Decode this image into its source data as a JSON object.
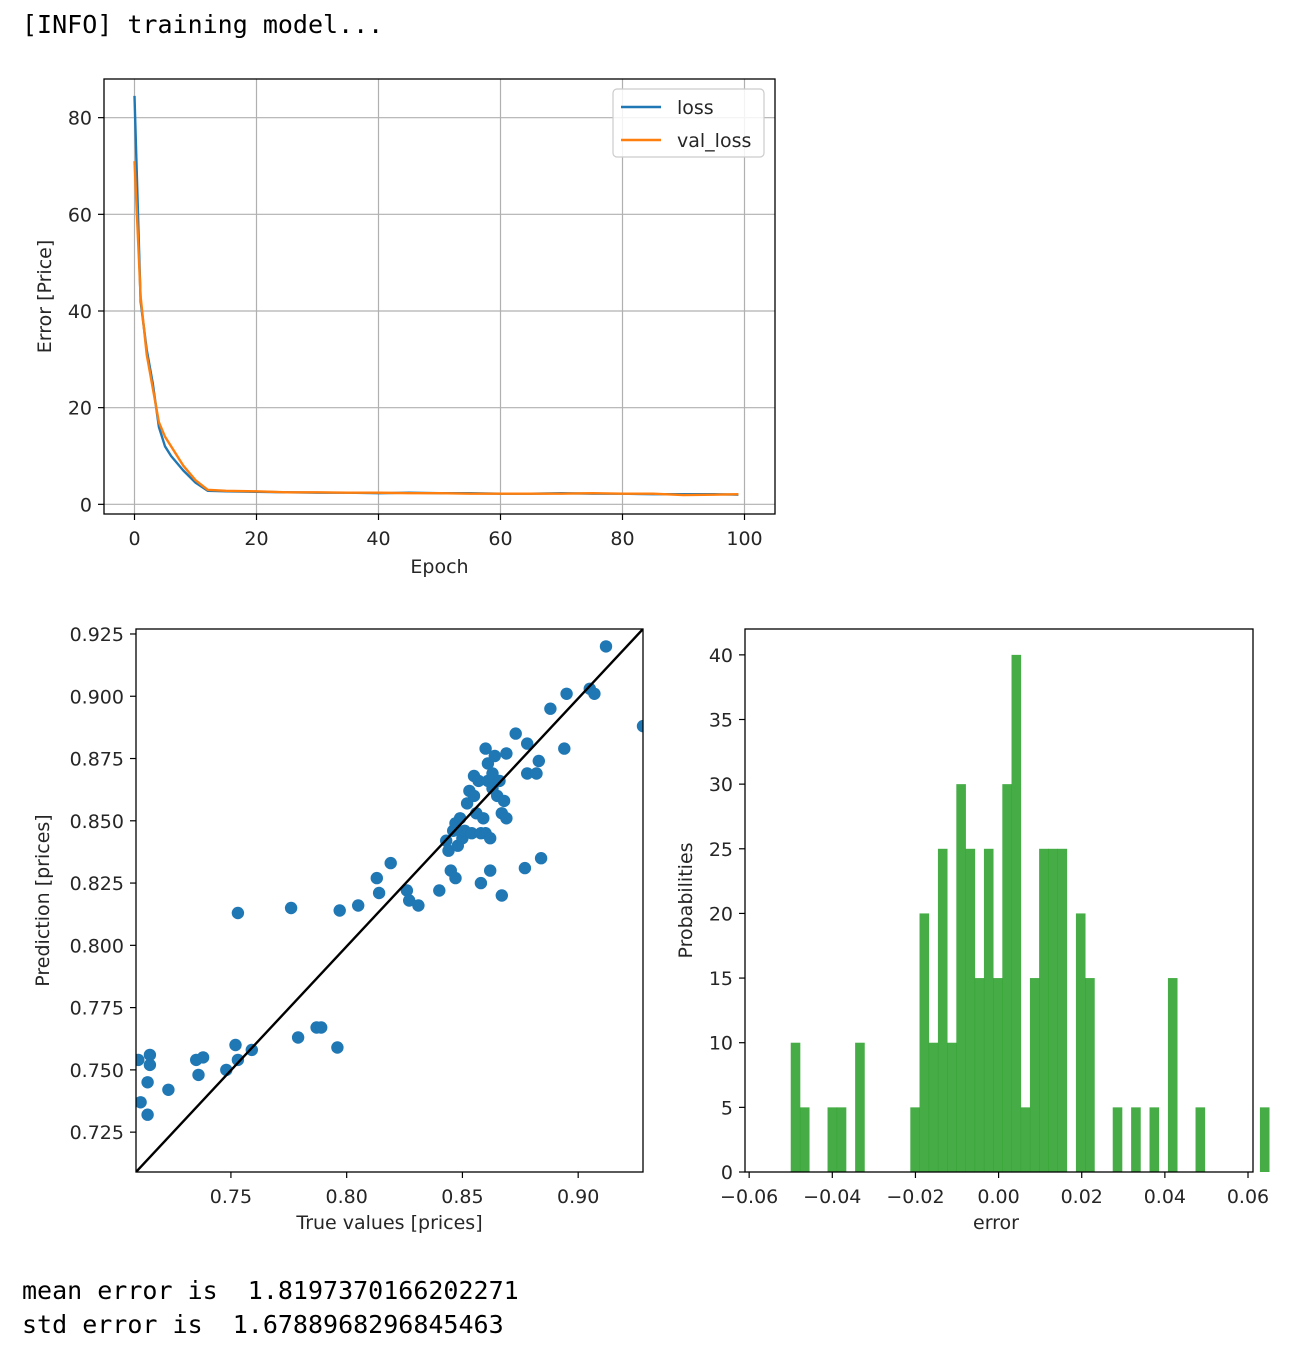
{
  "output": {
    "info": "[INFO] training model...",
    "mean_line": "mean error is  1.8197370166202271",
    "std_line": "std error is  1.6788968296845463"
  },
  "colors": {
    "loss": "#1f77b4",
    "val_loss": "#ff7f0e",
    "scatter": "#1f77b4",
    "hist": "#2ca02c",
    "diagonal": "#000000"
  },
  "chart_data": [
    {
      "type": "line",
      "xlabel": "Epoch",
      "ylabel": "Error [Price]",
      "xlim": [
        -5,
        105
      ],
      "ylim": [
        -2,
        88
      ],
      "xticks": [
        0,
        20,
        40,
        60,
        80,
        100
      ],
      "yticks": [
        0,
        20,
        40,
        60,
        80
      ],
      "grid": true,
      "legend_position": "top-right",
      "series": [
        {
          "name": "loss",
          "x": [
            0,
            1,
            2,
            3,
            4,
            5,
            6,
            8,
            10,
            12,
            15,
            20,
            25,
            30,
            35,
            40,
            45,
            50,
            55,
            60,
            65,
            70,
            75,
            80,
            85,
            90,
            95,
            99
          ],
          "y": [
            84.5,
            42,
            32,
            25,
            16,
            12,
            10,
            7,
            4.5,
            2.8,
            2.7,
            2.6,
            2.5,
            2.4,
            2.4,
            2.3,
            2.4,
            2.3,
            2.3,
            2.2,
            2.2,
            2.3,
            2.2,
            2.2,
            2.1,
            2.1,
            2.1,
            2.0
          ]
        },
        {
          "name": "val_loss",
          "x": [
            0,
            1,
            2,
            3,
            4,
            5,
            6,
            8,
            10,
            12,
            15,
            20,
            25,
            30,
            35,
            40,
            45,
            50,
            55,
            60,
            65,
            70,
            75,
            80,
            85,
            90,
            95,
            99
          ],
          "y": [
            71,
            43,
            31,
            24,
            17,
            14,
            12,
            8,
            5,
            3.0,
            2.8,
            2.7,
            2.5,
            2.5,
            2.4,
            2.4,
            2.3,
            2.3,
            2.2,
            2.2,
            2.2,
            2.2,
            2.3,
            2.2,
            2.2,
            1.9,
            2.0,
            2.1
          ]
        }
      ]
    },
    {
      "type": "scatter",
      "xlabel": "True values [prices]",
      "ylabel": "Prediction [prices]",
      "xlim": [
        0.709,
        0.928
      ],
      "ylim": [
        0.709,
        0.927
      ],
      "xticks": [
        0.75,
        0.8,
        0.85,
        0.9
      ],
      "xtick_labels": [
        "0.75",
        "0.80",
        "0.85",
        "0.90"
      ],
      "yticks": [
        0.725,
        0.75,
        0.775,
        0.8,
        0.825,
        0.85,
        0.875,
        0.9,
        0.925
      ],
      "ytick_labels": [
        "0.725",
        "0.750",
        "0.775",
        "0.800",
        "0.825",
        "0.850",
        "0.875",
        "0.900",
        "0.925"
      ],
      "diagonal_line": [
        [
          0.709,
          0.709
        ],
        [
          0.928,
          0.927
        ]
      ],
      "points": [
        [
          0.71,
          0.754
        ],
        [
          0.711,
          0.737
        ],
        [
          0.714,
          0.732
        ],
        [
          0.714,
          0.745
        ],
        [
          0.715,
          0.752
        ],
        [
          0.715,
          0.756
        ],
        [
          0.723,
          0.742
        ],
        [
          0.735,
          0.754
        ],
        [
          0.736,
          0.748
        ],
        [
          0.738,
          0.755
        ],
        [
          0.748,
          0.75
        ],
        [
          0.752,
          0.76
        ],
        [
          0.753,
          0.754
        ],
        [
          0.753,
          0.813
        ],
        [
          0.759,
          0.758
        ],
        [
          0.776,
          0.815
        ],
        [
          0.779,
          0.763
        ],
        [
          0.787,
          0.767
        ],
        [
          0.789,
          0.767
        ],
        [
          0.796,
          0.759
        ],
        [
          0.797,
          0.814
        ],
        [
          0.805,
          0.816
        ],
        [
          0.813,
          0.827
        ],
        [
          0.814,
          0.821
        ],
        [
          0.819,
          0.833
        ],
        [
          0.826,
          0.822
        ],
        [
          0.827,
          0.818
        ],
        [
          0.831,
          0.816
        ],
        [
          0.84,
          0.822
        ],
        [
          0.843,
          0.842
        ],
        [
          0.844,
          0.838
        ],
        [
          0.845,
          0.83
        ],
        [
          0.846,
          0.846
        ],
        [
          0.847,
          0.849
        ],
        [
          0.847,
          0.827
        ],
        [
          0.848,
          0.84
        ],
        [
          0.849,
          0.851
        ],
        [
          0.85,
          0.843
        ],
        [
          0.851,
          0.846
        ],
        [
          0.852,
          0.857
        ],
        [
          0.853,
          0.862
        ],
        [
          0.854,
          0.845
        ],
        [
          0.855,
          0.86
        ],
        [
          0.855,
          0.868
        ],
        [
          0.856,
          0.853
        ],
        [
          0.857,
          0.866
        ],
        [
          0.858,
          0.845
        ],
        [
          0.858,
          0.825
        ],
        [
          0.859,
          0.851
        ],
        [
          0.86,
          0.845
        ],
        [
          0.86,
          0.879
        ],
        [
          0.861,
          0.866
        ],
        [
          0.861,
          0.873
        ],
        [
          0.862,
          0.843
        ],
        [
          0.862,
          0.83
        ],
        [
          0.863,
          0.869
        ],
        [
          0.863,
          0.863
        ],
        [
          0.864,
          0.876
        ],
        [
          0.865,
          0.86
        ],
        [
          0.866,
          0.866
        ],
        [
          0.867,
          0.853
        ],
        [
          0.867,
          0.82
        ],
        [
          0.868,
          0.858
        ],
        [
          0.869,
          0.877
        ],
        [
          0.869,
          0.851
        ],
        [
          0.873,
          0.885
        ],
        [
          0.877,
          0.831
        ],
        [
          0.878,
          0.881
        ],
        [
          0.878,
          0.869
        ],
        [
          0.882,
          0.869
        ],
        [
          0.883,
          0.874
        ],
        [
          0.884,
          0.835
        ],
        [
          0.888,
          0.895
        ],
        [
          0.894,
          0.879
        ],
        [
          0.895,
          0.901
        ],
        [
          0.905,
          0.903
        ],
        [
          0.907,
          0.901
        ],
        [
          0.912,
          0.92
        ],
        [
          0.928,
          0.888
        ]
      ]
    },
    {
      "type": "bar",
      "subtype": "histogram",
      "xlabel": "error",
      "ylabel": "Probabilities",
      "xlim": [
        -0.061,
        0.0612
      ],
      "ylim": [
        0,
        42
      ],
      "xticks": [
        -0.06,
        -0.04,
        -0.02,
        0.0,
        0.02,
        0.04,
        0.06
      ],
      "xtick_labels": [
        "−0.06",
        "−0.04",
        "−0.02",
        "0.00",
        "0.02",
        "0.04",
        "0.06"
      ],
      "yticks": [
        0,
        5,
        10,
        15,
        20,
        25,
        30,
        35,
        40
      ],
      "bin_start": -0.05,
      "bin_width": 0.002213,
      "values": [
        10,
        5,
        0,
        0,
        5,
        5,
        0,
        10,
        0,
        0,
        0,
        0,
        0,
        5,
        20,
        10,
        25,
        10,
        30,
        25,
        15,
        25,
        15,
        30,
        40,
        5,
        15,
        25,
        25,
        25,
        0,
        20,
        15,
        0,
        0,
        5,
        0,
        5,
        0,
        5,
        0,
        15,
        0,
        0,
        5,
        0,
        0,
        0,
        0,
        0,
        0,
        5
      ]
    }
  ]
}
